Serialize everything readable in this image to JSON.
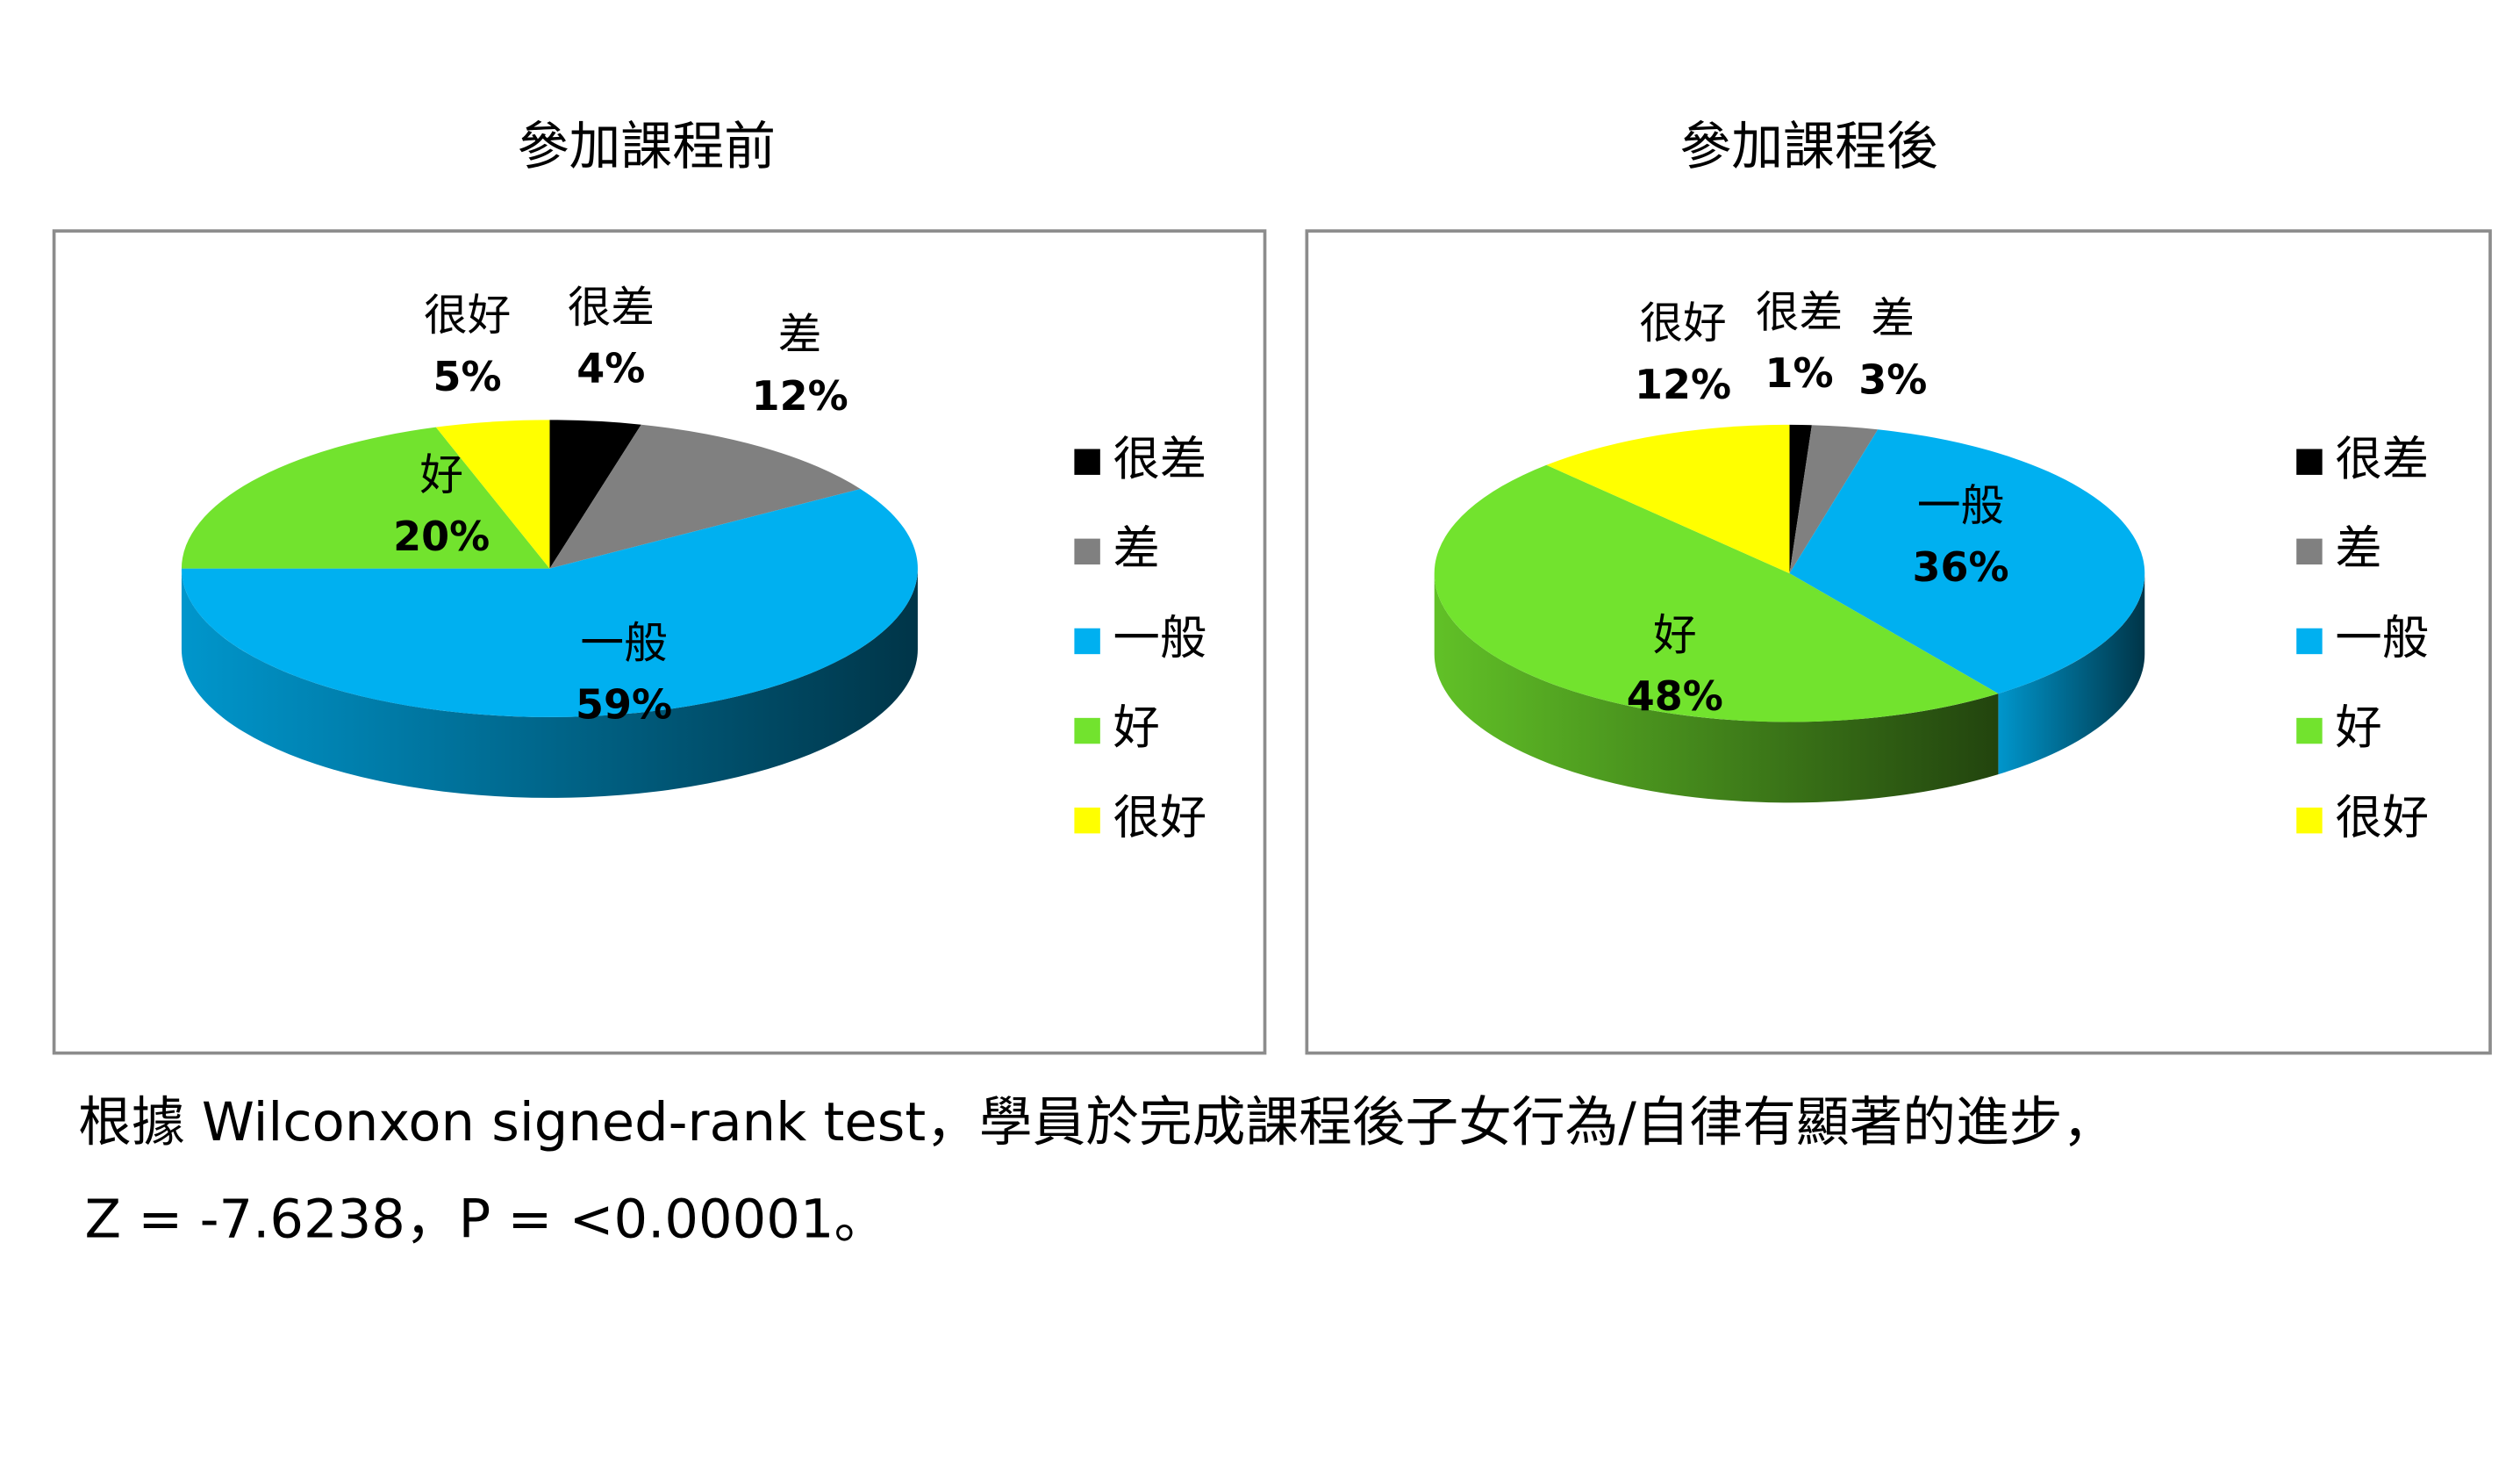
{
  "chart_data": [
    {
      "type": "pie",
      "title": "參加課程前",
      "categories": [
        "很差",
        "差",
        "一般",
        "好",
        "很好"
      ],
      "values": [
        4,
        12,
        59,
        20,
        5
      ],
      "value_labels": [
        "4%",
        "12%",
        "59%",
        "20%",
        "5%"
      ],
      "colors": [
        "#000000",
        "#808080",
        "#00b0f0",
        "#72e32e",
        "#ffff00"
      ],
      "legend": "right"
    },
    {
      "type": "pie",
      "title": "參加課程後",
      "categories": [
        "很差",
        "差",
        "一般",
        "好",
        "很好"
      ],
      "values": [
        1,
        3,
        36,
        48,
        12
      ],
      "value_labels": [
        "1%",
        "3%",
        "36%",
        "48%",
        "12%"
      ],
      "colors": [
        "#000000",
        "#808080",
        "#00b0f0",
        "#72e32e",
        "#ffff00"
      ],
      "legend": "right"
    }
  ],
  "caption": [
    "根據 Wilconxon signed-rank test，學員於完成課程後子女行為/自律有顯著的進步，",
    "Z = -7.6238，P = <0.00001。"
  ]
}
